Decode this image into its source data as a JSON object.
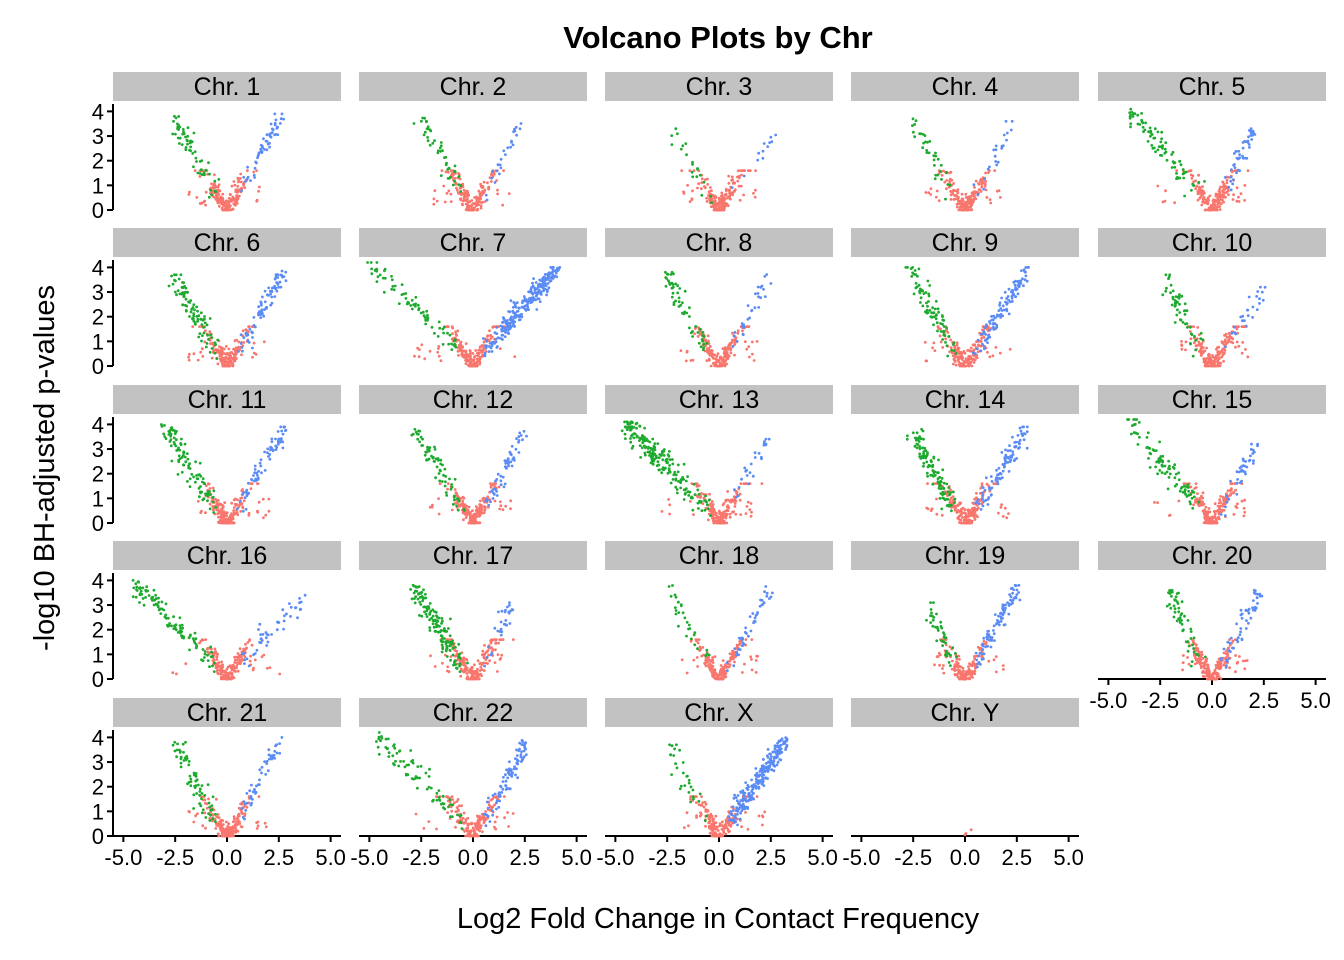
{
  "chart_data": {
    "type": "scatter",
    "facet": "grid",
    "title": "Volcano Plots by Chr",
    "xlabel": "Log2 Fold Change in Contact Frequency",
    "ylabel": "-log10 BH-adjusted p-values",
    "xlim": [
      -5.5,
      5.5
    ],
    "ylim": [
      0,
      4.3
    ],
    "xticks": [
      -5.0,
      -2.5,
      0.0,
      2.5,
      5.0
    ],
    "xtick_labels": [
      "-5.0",
      "-2.5",
      "0.0",
      "2.5",
      "5.0"
    ],
    "yticks": [
      0,
      1,
      2,
      3,
      4
    ],
    "ytick_labels": [
      "0",
      "1",
      "2",
      "3",
      "4"
    ],
    "grid": false,
    "colors": {
      "not_significant": "#F8766D",
      "down": "#1EAA2E",
      "up": "#5B8CF5",
      "strip": "#C2C2C2"
    },
    "panels": [
      {
        "label": "Chr. 1",
        "xmin": -2.6,
        "xmax": 2.6,
        "downTop": 3.7,
        "upTop": 3.8,
        "nDown": 60,
        "nUp": 55
      },
      {
        "label": "Chr. 2",
        "xmin": -2.5,
        "xmax": 2.3,
        "downTop": 3.7,
        "upTop": 3.5,
        "nDown": 45,
        "nUp": 25
      },
      {
        "label": "Chr. 3",
        "xmin": -2.2,
        "xmax": 2.8,
        "downTop": 3.2,
        "upTop": 3.1,
        "nDown": 20,
        "nUp": 12
      },
      {
        "label": "Chr. 4",
        "xmin": -2.6,
        "xmax": 2.2,
        "downTop": 3.6,
        "upTop": 3.5,
        "nDown": 35,
        "nUp": 22
      },
      {
        "label": "Chr. 5",
        "xmin": -4.0,
        "xmax": 2.0,
        "downTop": 4.1,
        "upTop": 3.2,
        "nDown": 80,
        "nUp": 45
      },
      {
        "label": "Chr. 6",
        "xmin": -2.5,
        "xmax": 2.8,
        "downTop": 3.6,
        "upTop": 3.8,
        "nDown": 90,
        "nUp": 80
      },
      {
        "label": "Chr. 7",
        "xmin": -5.0,
        "xmax": 4.0,
        "downTop": 4.1,
        "upTop": 3.9,
        "nDown": 75,
        "nUp": 260
      },
      {
        "label": "Chr. 8",
        "xmin": -2.5,
        "xmax": 2.4,
        "downTop": 3.7,
        "upTop": 3.7,
        "nDown": 55,
        "nUp": 30
      },
      {
        "label": "Chr. 9",
        "xmin": -2.6,
        "xmax": 3.0,
        "downTop": 3.9,
        "upTop": 3.9,
        "nDown": 80,
        "nUp": 110
      },
      {
        "label": "Chr. 10",
        "xmin": -2.3,
        "xmax": 2.5,
        "downTop": 3.6,
        "upTop": 3.4,
        "nDown": 55,
        "nUp": 25
      },
      {
        "label": "Chr. 11",
        "xmin": -3.0,
        "xmax": 2.8,
        "downTop": 3.9,
        "upTop": 3.8,
        "nDown": 100,
        "nUp": 70
      },
      {
        "label": "Chr. 12",
        "xmin": -2.8,
        "xmax": 2.5,
        "downTop": 3.8,
        "upTop": 3.7,
        "nDown": 70,
        "nUp": 60
      },
      {
        "label": "Chr. 13",
        "xmin": -4.5,
        "xmax": 2.5,
        "downTop": 4.0,
        "upTop": 3.7,
        "nDown": 200,
        "nUp": 25
      },
      {
        "label": "Chr. 14",
        "xmin": -2.5,
        "xmax": 3.0,
        "downTop": 3.7,
        "upTop": 3.8,
        "nDown": 110,
        "nUp": 100
      },
      {
        "label": "Chr. 15",
        "xmin": -4.0,
        "xmax": 2.0,
        "downTop": 4.1,
        "upTop": 3.1,
        "nDown": 95,
        "nUp": 40
      },
      {
        "label": "Chr. 16",
        "xmin": -4.5,
        "xmax": 3.7,
        "downTop": 3.9,
        "upTop": 3.3,
        "nDown": 110,
        "nUp": 45
      },
      {
        "label": "Chr. 17",
        "xmin": -2.8,
        "xmax": 1.8,
        "downTop": 3.7,
        "upTop": 3.0,
        "nDown": 140,
        "nUp": 30
      },
      {
        "label": "Chr. 18",
        "xmin": -2.5,
        "xmax": 2.5,
        "downTop": 3.7,
        "upTop": 3.7,
        "nDown": 30,
        "nUp": 45
      },
      {
        "label": "Chr. 19",
        "xmin": -1.8,
        "xmax": 2.5,
        "downTop": 3.0,
        "upTop": 3.7,
        "nDown": 40,
        "nUp": 90
      },
      {
        "label": "Chr. 20",
        "xmin": -2.0,
        "xmax": 2.3,
        "downTop": 3.5,
        "upTop": 3.5,
        "nDown": 55,
        "nUp": 55
      },
      {
        "label": "Chr. 21",
        "xmin": -2.5,
        "xmax": 2.6,
        "downTop": 3.7,
        "upTop": 3.9,
        "nDown": 70,
        "nUp": 50
      },
      {
        "label": "Chr. 22",
        "xmin": -4.6,
        "xmax": 2.6,
        "downTop": 4.1,
        "upTop": 3.8,
        "nDown": 80,
        "nUp": 90
      },
      {
        "label": "Chr. X",
        "xmin": -2.3,
        "xmax": 3.2,
        "downTop": 3.6,
        "upTop": 3.9,
        "nDown": 30,
        "nUp": 250
      },
      {
        "label": "Chr. Y",
        "xmin": -0.1,
        "xmax": 0.4,
        "downTop": 0,
        "upTop": 0,
        "nDown": 0,
        "nUp": 0
      }
    ]
  }
}
